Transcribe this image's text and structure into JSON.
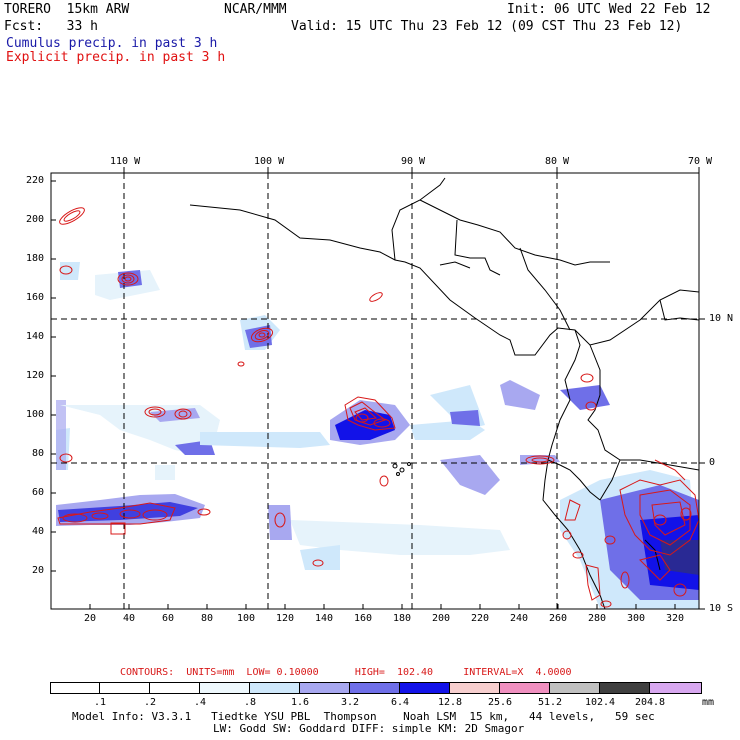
{
  "header": {
    "model": "TORERO  15km ARW",
    "org": "NCAR/MMM",
    "init": "Init: 06 UTC Wed 22 Feb 12",
    "fcst": "Fcst:   33 h",
    "valid": "Valid: 15 UTC Thu 23 Feb 12 (09 CST Thu 23 Feb 12)",
    "cumulus": "Cumulus precip. in past 3 h",
    "explicit": "Explicit precip. in past 3 h"
  },
  "colors": {
    "cumulus": "#1a1aa8",
    "explicit": "#e01010",
    "contour": "#d81818"
  },
  "axes": {
    "top_lon": [
      "110 W",
      "100 W",
      "90 W",
      "80 W",
      "70 W"
    ],
    "right_lat": [
      "10 N",
      "0",
      "10 S"
    ],
    "left_y": [
      "220",
      "200",
      "180",
      "160",
      "140",
      "120",
      "100",
      "80",
      "60",
      "40",
      "20"
    ],
    "bottom_x": [
      "20",
      "40",
      "60",
      "80",
      "100",
      "120",
      "140",
      "160",
      "180",
      "200",
      "220",
      "240",
      "260",
      "280",
      "300",
      "320"
    ]
  },
  "contour_line": {
    "prefix": "CONTOURS:  UNITS=mm  LOW= 0.10000",
    "high": "HIGH=  102.40",
    "interval": "INTERVAL=X  4.0000"
  },
  "legend": {
    "values": [
      ".1",
      ".2",
      ".4",
      ".8",
      "1.6",
      "3.2",
      "6.4",
      "12.8",
      "25.6",
      "51.2",
      "102.4",
      "204.8"
    ],
    "unit": "mm",
    "colors": [
      "#ffffff",
      "#ffffff",
      "#ffffff",
      "#eef8fd",
      "#cfe8fb",
      "#a8a8f0",
      "#6f6fe8",
      "#1212e8",
      "#f7cfcf",
      "#f090c0",
      "#c0c0c0",
      "#404040",
      "#d8a8f0"
    ]
  },
  "footer": {
    "line1": "Model Info: V3.3.1   Tiedtke YSU PBL  Thompson    Noah LSM  15 km,   44 levels,   59 sec",
    "line2": "LW: Godd SW: Goddard DIFF: simple KM: 2D Smagor"
  },
  "map_features": [
    "coastline-central-america",
    "coastline-south-america",
    "galapagos-islands",
    "cumulus-precip-areas",
    "explicit-precip-contours"
  ]
}
